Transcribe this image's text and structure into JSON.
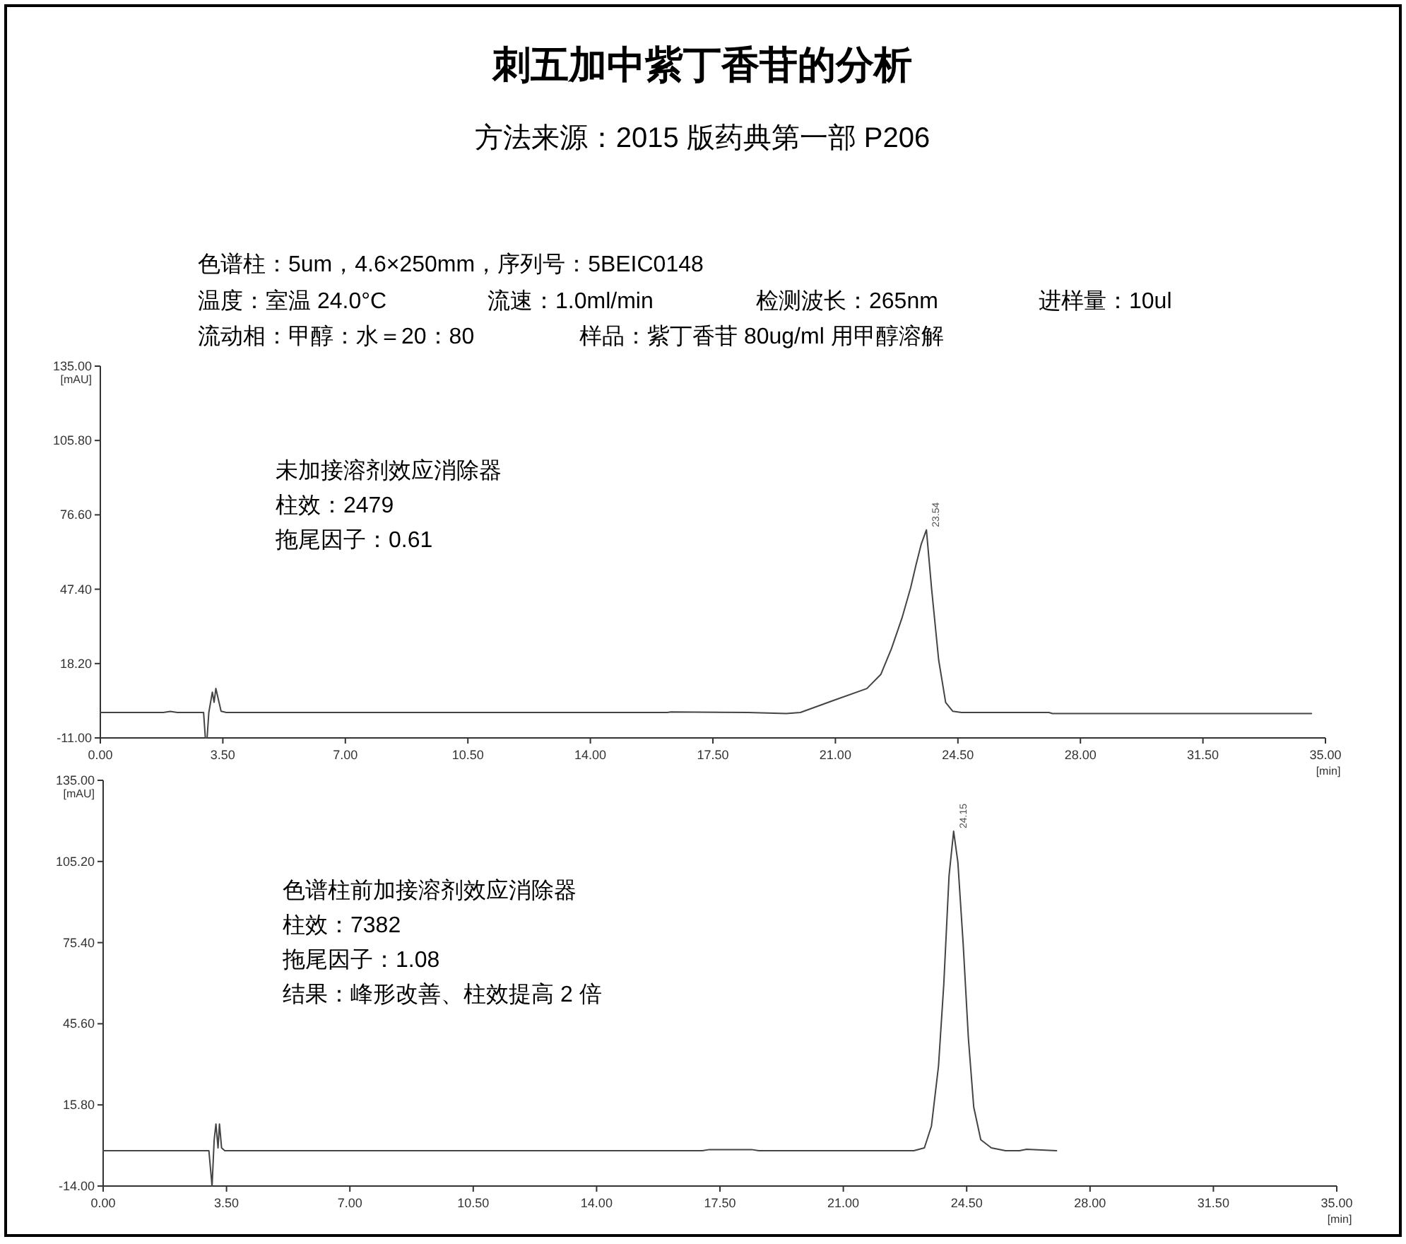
{
  "chart_data": [
    {
      "type": "line",
      "title": "刺五加中紫丁香苷的分析",
      "subtitle": "方法来源：2015 版药典第一部 P206",
      "xlabel": "[min]",
      "ylabel": "[mAU]",
      "annotations": [
        "色谱柱：5um，4.6×250mm，序列号：5BEIC0148",
        "温度：室温 24.0°C",
        "流速：1.0ml/min",
        "检测波长：265nm",
        "进样量：10ul",
        "流动相：甲醇：水＝20：80",
        "样品：紫丁香苷 80ug/ml 用甲醇溶解",
        "未加接溶剂效应消除器",
        "柱效：2479",
        "拖尾因子：0.61",
        {
          "text": "23.54",
          "x": 23.6,
          "y": 70.7
        }
      ],
      "xlim": [
        0,
        35
      ],
      "xticks": [
        {
          "value": 0,
          "label": "0.00"
        },
        {
          "value": 3.5,
          "label": "3.50"
        },
        {
          "value": 7,
          "label": "7.00"
        },
        {
          "value": 10.5,
          "label": "10.50"
        },
        {
          "value": 14,
          "label": "14.00"
        },
        {
          "value": 17.5,
          "label": "17.50"
        },
        {
          "value": 21,
          "label": "21.00"
        },
        {
          "value": 24.5,
          "label": "24.50"
        },
        {
          "value": 28,
          "label": "28.00"
        },
        {
          "value": 31.5,
          "label": "31.50"
        },
        {
          "value": 35,
          "label": "35.00"
        }
      ],
      "ylim": [
        -11,
        135
      ],
      "yticks": [
        {
          "value": -11,
          "label": "-11.00"
        },
        {
          "value": 18.2,
          "label": "18.20"
        },
        {
          "value": 47.4,
          "label": "47.40"
        },
        {
          "value": 76.6,
          "label": "76.60"
        },
        {
          "value": 105.8,
          "label": "105.80"
        },
        {
          "value": 135,
          "label": "135.00"
        }
      ],
      "grid": false,
      "marker": "none",
      "line_style": "solid",
      "series": [
        {
          "color": "#444444",
          "x": [
            0,
            1.8,
            2.0,
            2.2,
            2.95,
            3.0,
            3.05,
            3.1,
            3.2,
            3.25,
            3.3,
            3.45,
            3.6,
            14.1,
            14.2,
            16.2,
            16.3,
            18.5,
            19.6,
            20.0,
            21.0,
            21.9,
            22.3,
            22.6,
            22.9,
            23.15,
            23.3,
            23.45,
            23.6,
            23.75,
            23.95,
            24.15,
            24.35,
            24.6,
            27.1,
            27.2,
            34.6
          ],
          "values": [
            -1,
            -1,
            -0.6,
            -1,
            -1,
            -11,
            -11,
            -1,
            7,
            3,
            8.4,
            -0.5,
            -1,
            -1,
            -1,
            -1,
            -0.8,
            -1,
            -1.4,
            -1,
            4,
            8.4,
            14,
            24,
            36,
            48,
            56.8,
            65,
            70.7,
            47.3,
            19.6,
            2.9,
            -0.5,
            -1,
            -1,
            -1.4,
            -1.4
          ]
        }
      ]
    },
    {
      "type": "line",
      "xlabel": "[min]",
      "ylabel": "[mAU]",
      "annotations": [
        "色谱柱前加接溶剂效应消除器",
        "柱效：7382",
        "拖尾因子：1.08",
        "结果：峰形改善、柱效提高 2 倍",
        {
          "text": "24.15",
          "x": 24.13,
          "y": 116.3
        }
      ],
      "xlim": [
        0,
        35
      ],
      "xticks": [
        {
          "value": 0,
          "label": "0.00"
        },
        {
          "value": 3.5,
          "label": "3.50"
        },
        {
          "value": 7,
          "label": "7.00"
        },
        {
          "value": 10.5,
          "label": "10.50"
        },
        {
          "value": 14,
          "label": "14.00"
        },
        {
          "value": 17.5,
          "label": "17.50"
        },
        {
          "value": 21,
          "label": "21.00"
        },
        {
          "value": 24.5,
          "label": "24.50"
        },
        {
          "value": 28,
          "label": "28.00"
        },
        {
          "value": 31.5,
          "label": "31.50"
        },
        {
          "value": 35,
          "label": "35.00"
        }
      ],
      "ylim": [
        -14,
        135
      ],
      "yticks": [
        {
          "value": -14,
          "label": "-14.00"
        },
        {
          "value": 15.8,
          "label": "15.80"
        },
        {
          "value": 45.6,
          "label": "45.60"
        },
        {
          "value": 75.4,
          "label": "75.40"
        },
        {
          "value": 105.2,
          "label": "105.20"
        },
        {
          "value": 135,
          "label": "135.00"
        }
      ],
      "grid": false,
      "marker": "none",
      "line_style": "solid",
      "series": [
        {
          "color": "#444444",
          "x": [
            0,
            3.0,
            3.09,
            3.15,
            3.2,
            3.26,
            3.3,
            3.36,
            3.45,
            3.7,
            17.0,
            17.2,
            18.4,
            18.6,
            23.0,
            23.3,
            23.5,
            23.7,
            23.85,
            24.0,
            24.13,
            24.25,
            24.4,
            24.55,
            24.7,
            24.9,
            25.2,
            25.6,
            26.0,
            26.2,
            27.05
          ],
          "values": [
            -1,
            -1,
            -14,
            3,
            8.8,
            0,
            8.8,
            0,
            -1,
            -1,
            -1,
            -0.6,
            -0.6,
            -1,
            -1,
            0,
            8,
            30,
            60,
            100,
            116.3,
            105,
            75,
            40,
            15,
            3,
            0,
            -1,
            -1,
            -0.5,
            -1
          ]
        }
      ]
    }
  ]
}
